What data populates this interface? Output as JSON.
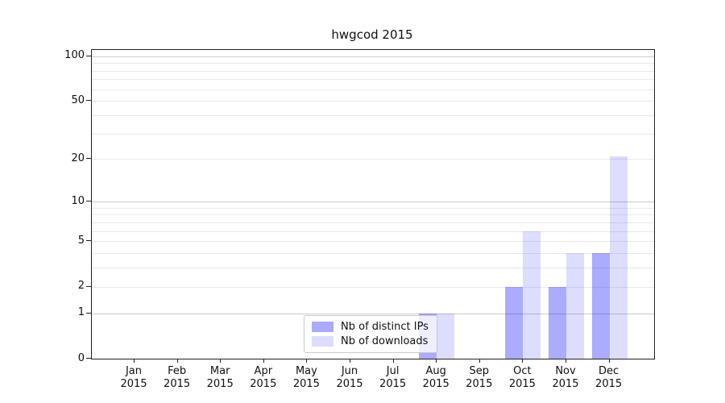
{
  "title": "hwgcod 2015",
  "legend": {
    "items": [
      {
        "label": "Nb of distinct IPs",
        "color": "rgba(0,0,255,0.33)"
      },
      {
        "label": "Nb of downloads",
        "color": "rgba(0,0,255,0.135)"
      }
    ]
  },
  "y_axis": {
    "tick_labels": [
      "100",
      "50",
      "20",
      "10",
      "5",
      "2",
      "1",
      "0"
    ],
    "tick_values": [
      100,
      50,
      20,
      10,
      5,
      2,
      1,
      0
    ],
    "grid_major_values": [
      1,
      10,
      100
    ],
    "grid_minor_values": [
      2,
      3,
      4,
      5,
      6,
      7,
      8,
      9,
      20,
      30,
      40,
      50,
      60,
      70,
      80,
      90
    ],
    "grid_major_color": "#cccccc",
    "grid_minor_color": "#e9e9e9"
  },
  "x_axis": {
    "months": [
      {
        "label": "Jan",
        "year": "2015"
      },
      {
        "label": "Feb",
        "year": "2015"
      },
      {
        "label": "Mar",
        "year": "2015"
      },
      {
        "label": "Apr",
        "year": "2015"
      },
      {
        "label": "May",
        "year": "2015"
      },
      {
        "label": "Jun",
        "year": "2015"
      },
      {
        "label": "Jul",
        "year": "2015"
      },
      {
        "label": "Aug",
        "year": "2015"
      },
      {
        "label": "Sep",
        "year": "2015"
      },
      {
        "label": "Oct",
        "year": "2015"
      },
      {
        "label": "Nov",
        "year": "2015"
      },
      {
        "label": "Dec",
        "year": "2015"
      }
    ]
  },
  "chart_data": {
    "type": "bar",
    "title": "hwgcod 2015",
    "categories": [
      "Jan 2015",
      "Feb 2015",
      "Mar 2015",
      "Apr 2015",
      "May 2015",
      "Jun 2015",
      "Jul 2015",
      "Aug 2015",
      "Sep 2015",
      "Oct 2015",
      "Nov 2015",
      "Dec 2015"
    ],
    "series": [
      {
        "name": "Nb of distinct IPs",
        "color": "rgba(0,0,255,0.33)",
        "values": [
          0,
          0,
          0,
          0,
          0,
          0,
          0,
          1,
          0,
          2,
          2,
          4
        ]
      },
      {
        "name": "Nb of downloads",
        "color": "rgba(0,0,255,0.135)",
        "values": [
          0,
          0,
          0,
          0,
          0,
          0,
          0,
          1,
          0,
          6,
          4,
          21
        ]
      }
    ],
    "xlabel": "",
    "ylabel": "",
    "yscale": "log1p",
    "ylim": [
      0,
      110
    ],
    "y_ticks": [
      0,
      1,
      2,
      5,
      10,
      20,
      50,
      100
    ],
    "grid": "horizontal",
    "legend_position": "lower-center"
  }
}
